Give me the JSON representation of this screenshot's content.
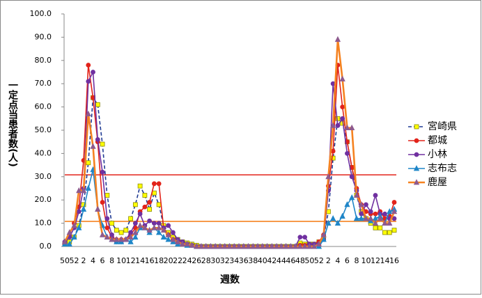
{
  "chart_data": {
    "type": "line",
    "x_label": "週数",
    "y_label": "一定点当患者数(人)",
    "categories": [
      "50",
      null,
      "52",
      null,
      "2",
      null,
      "4",
      null,
      "6",
      null,
      "8",
      null,
      "10",
      null,
      "12",
      null,
      "14",
      null,
      "16",
      null,
      "18",
      null,
      "20",
      null,
      "22",
      null,
      "24",
      null,
      "26",
      null,
      "28",
      null,
      "30",
      null,
      "32",
      null,
      "34",
      null,
      "36",
      null,
      "38",
      null,
      "40",
      null,
      "42",
      null,
      "44",
      null,
      "46",
      null,
      "48",
      null,
      "50",
      null,
      "52",
      null,
      "2",
      null,
      "4",
      null,
      "6",
      null,
      "8",
      null,
      "10",
      null,
      "12",
      null,
      "14",
      null,
      "16"
    ],
    "ylim": [
      0,
      100
    ],
    "yticks": [
      {
        "value": 0,
        "label": "0.0"
      },
      {
        "value": 10,
        "label": "10.0"
      },
      {
        "value": 20,
        "label": "20.0"
      },
      {
        "value": 30,
        "label": "30.0"
      },
      {
        "value": 40,
        "label": "40.0"
      },
      {
        "value": 50,
        "label": "50.0"
      },
      {
        "value": 60,
        "label": "60.0"
      },
      {
        "value": 70,
        "label": "70.0"
      },
      {
        "value": 80,
        "label": "80.0"
      },
      {
        "value": 90,
        "label": "90.0"
      },
      {
        "value": 100,
        "label": "100.0"
      }
    ],
    "reference_lines": [
      {
        "value": 30.8,
        "color": "#e2231a"
      },
      {
        "value": 10.8,
        "color": "#f58220"
      }
    ],
    "series": [
      {
        "name": "宮崎県",
        "color": "#1f3a93",
        "dashed": true,
        "marker": "square",
        "marker_color": "#ffff00",
        "values": [
          1,
          2,
          4,
          9,
          18,
          36,
          64,
          61,
          44,
          22,
          10,
          7,
          6,
          7,
          12,
          18,
          26,
          22,
          16,
          23,
          18,
          9,
          6,
          4,
          3,
          2,
          1.5,
          1,
          0.5,
          0,
          0,
          0,
          0,
          0,
          0,
          0,
          0,
          0,
          0,
          0,
          0,
          0,
          0,
          0,
          0,
          0,
          0,
          0,
          0,
          0,
          1.5,
          1,
          1,
          1,
          2,
          4,
          15,
          38,
          55,
          53,
          45,
          34,
          22,
          15,
          12,
          10,
          8,
          8,
          6,
          6,
          7
        ]
      },
      {
        "name": "都城",
        "color": "#e2231a",
        "marker": "circle",
        "marker_color": "#e2231a",
        "values": [
          1,
          5,
          10,
          17,
          37,
          78,
          64,
          45,
          19,
          8,
          4,
          3,
          3,
          3,
          5,
          8,
          15,
          17,
          19,
          27,
          27,
          8,
          5,
          3,
          2,
          1.5,
          1,
          0.5,
          0,
          0,
          0,
          0,
          0,
          0,
          0,
          0,
          0,
          0,
          0,
          0,
          0,
          0,
          0,
          0,
          0,
          0,
          0,
          0,
          0,
          0,
          0.5,
          0.5,
          1,
          1,
          2,
          5,
          26,
          41,
          78,
          60,
          45,
          34,
          25,
          18,
          15,
          14,
          14,
          15,
          12,
          13,
          19
        ]
      },
      {
        "name": "小林",
        "color": "#7030a0",
        "marker": "circle",
        "marker_color": "#7030a0",
        "values": [
          2,
          4,
          8,
          15,
          25,
          71,
          75,
          46,
          32,
          12,
          5,
          2,
          2,
          3,
          6,
          10,
          14,
          9,
          11,
          10,
          10,
          8,
          9,
          6,
          3,
          2,
          1,
          0.5,
          0,
          0,
          0,
          0,
          0,
          0,
          0,
          0,
          0,
          0,
          0,
          0,
          0,
          0,
          0,
          0,
          0,
          0,
          0,
          0,
          0,
          0,
          4,
          4,
          1,
          1,
          1,
          3,
          24,
          70,
          52,
          55,
          40,
          30,
          24,
          14,
          18,
          15,
          22,
          14,
          14,
          12,
          12
        ]
      },
      {
        "name": "志布志",
        "color": "#1f86c8",
        "marker": "triangle",
        "marker_color": "#1f86c8",
        "values": [
          1,
          1,
          4,
          8,
          16,
          25,
          33,
          16,
          9,
          4,
          3,
          2,
          2,
          3,
          2,
          4,
          8,
          8,
          6,
          8,
          6,
          4,
          3,
          2,
          1,
          1,
          0.5,
          0.5,
          0,
          0,
          0,
          0,
          0,
          0,
          0,
          0,
          0,
          0,
          0,
          0,
          0,
          0,
          0,
          0,
          0,
          0,
          0,
          0,
          0,
          0,
          0,
          0,
          0,
          0,
          0,
          3,
          10,
          12,
          10,
          13,
          18,
          21,
          12,
          12,
          12,
          11,
          12,
          13,
          10,
          15,
          16
        ]
      },
      {
        "name": "鹿屋",
        "color": "#f58220",
        "marker": "triangle",
        "marker_color": "#8e5a8e",
        "thick": true,
        "values": [
          2,
          6,
          9,
          24,
          24,
          57,
          43,
          16,
          5,
          4,
          3,
          3,
          3,
          3,
          4,
          6,
          9,
          8,
          7,
          8,
          8,
          7,
          5,
          3,
          2,
          1,
          1,
          0.5,
          0,
          0,
          0,
          0,
          0,
          0,
          0,
          0,
          0,
          0,
          0,
          0,
          0,
          0,
          0,
          0,
          0,
          0,
          0,
          0,
          0,
          0,
          0,
          0,
          0,
          0,
          1,
          5,
          30,
          52,
          89,
          72,
          51,
          51,
          22,
          18,
          12,
          12,
          10,
          12,
          10,
          10,
          15
        ]
      }
    ]
  }
}
